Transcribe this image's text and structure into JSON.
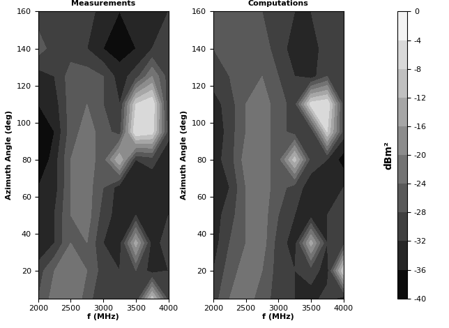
{
  "chart_data": [
    {
      "type": "heatmap",
      "title": "Measurements",
      "x_label": "f (MHz)",
      "y_label": "Azimuth Angle (deg)",
      "x": [
        2000,
        2250,
        2500,
        2750,
        3000,
        3250,
        3500,
        3750,
        4000
      ],
      "y": [
        5,
        20,
        35,
        50,
        65,
        80,
        95,
        110,
        125,
        140,
        160
      ],
      "cells": [
        [
          -28,
          -22,
          -20,
          -26,
          -32,
          -30,
          -32,
          -10,
          -30
        ],
        [
          -30,
          -24,
          -20,
          -24,
          -30,
          -32,
          -28,
          -34,
          -32
        ],
        [
          -36,
          -32,
          -24,
          -24,
          -32,
          -34,
          -14,
          -34,
          -30
        ],
        [
          -34,
          -32,
          -24,
          -22,
          -30,
          -34,
          -32,
          -34,
          -32
        ],
        [
          -36,
          -34,
          -24,
          -22,
          -28,
          -34,
          -34,
          -36,
          -34
        ],
        [
          -40,
          -34,
          -24,
          -22,
          -26,
          -12,
          -32,
          -30,
          -36
        ],
        [
          -40,
          -36,
          -26,
          -22,
          -26,
          -30,
          -4,
          -6,
          -30
        ],
        [
          -36,
          -34,
          -26,
          -24,
          -28,
          -32,
          -8,
          -4,
          -32
        ],
        [
          -34,
          -32,
          -26,
          -26,
          -28,
          -34,
          -30,
          -20,
          -30
        ],
        [
          -26,
          -30,
          -30,
          -32,
          -36,
          -38,
          -36,
          -32,
          -30
        ],
        [
          -30,
          -28,
          -28,
          -30,
          -34,
          -36,
          -34,
          -34,
          -32
        ]
      ],
      "xlim": [
        2000,
        4000
      ],
      "ylim": [
        5,
        160
      ],
      "xticks": [
        2000,
        2500,
        3000,
        3500,
        4000
      ],
      "yticks": [
        20,
        40,
        60,
        80,
        100,
        120,
        140,
        160
      ]
    },
    {
      "type": "heatmap",
      "title": "Computations",
      "x_label": "f (MHz)",
      "y_label": "Azimuth Angle (deg)",
      "x": [
        2000,
        2250,
        2500,
        2750,
        3000,
        3250,
        3500,
        3750,
        4000
      ],
      "y": [
        5,
        20,
        35,
        50,
        65,
        80,
        95,
        110,
        125,
        140,
        160
      ],
      "cells": [
        [
          -30,
          -24,
          -22,
          -26,
          -30,
          -32,
          -34,
          -30,
          -34
        ],
        [
          -32,
          -26,
          -22,
          -24,
          -30,
          -32,
          -30,
          -34,
          -8
        ],
        [
          -34,
          -28,
          -24,
          -22,
          -30,
          -34,
          -14,
          -32,
          -30
        ],
        [
          -34,
          -30,
          -24,
          -22,
          -28,
          -32,
          -34,
          -32,
          -30
        ],
        [
          -36,
          -32,
          -24,
          -22,
          -26,
          -30,
          -34,
          -34,
          -32
        ],
        [
          -34,
          -30,
          -22,
          -22,
          -26,
          -10,
          -30,
          -32,
          -38
        ],
        [
          -36,
          -30,
          -24,
          -22,
          -26,
          -30,
          -32,
          -8,
          -30
        ],
        [
          -34,
          -30,
          -24,
          -22,
          -26,
          -30,
          -6,
          -4,
          -30
        ],
        [
          -30,
          -28,
          -24,
          -24,
          -28,
          -32,
          -34,
          -28,
          -30
        ],
        [
          -28,
          -26,
          -24,
          -26,
          -30,
          -34,
          -34,
          -30,
          -32
        ],
        [
          -28,
          -26,
          -26,
          -28,
          -30,
          -32,
          -32,
          -30,
          -30
        ]
      ],
      "xlim": [
        2000,
        4000
      ],
      "ylim": [
        5,
        160
      ],
      "xticks": [
        2000,
        2500,
        3000,
        3500,
        4000
      ],
      "yticks": [
        20,
        40,
        60,
        80,
        100,
        120,
        140,
        160
      ]
    }
  ],
  "colorbar": {
    "label": "dBm²",
    "range": [
      -40,
      0
    ],
    "ticks": [
      0,
      -4,
      -8,
      -12,
      -16,
      -20,
      -24,
      -28,
      -32,
      -36,
      -40
    ]
  }
}
